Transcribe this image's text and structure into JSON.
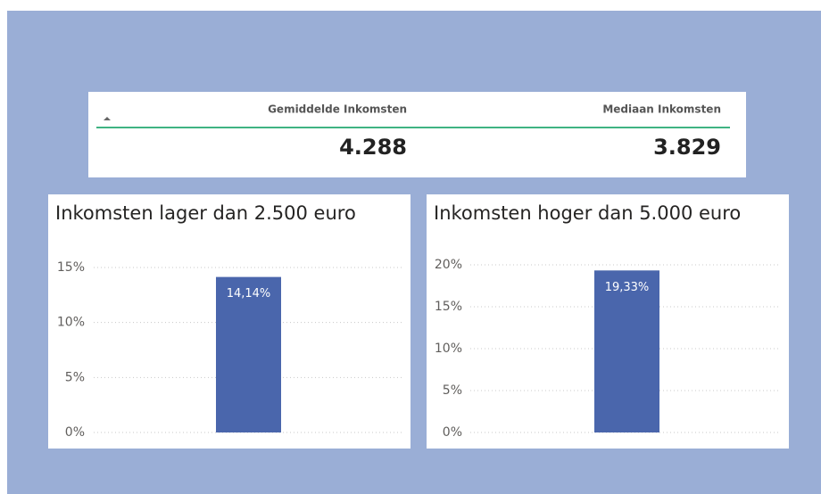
{
  "table": {
    "headers": [
      "Gemiddelde Inkomsten",
      "Mediaan Inkomsten"
    ],
    "rows": [
      [
        "4.288",
        "3.829"
      ]
    ]
  },
  "chart_data": [
    {
      "type": "bar",
      "title": "Inkomsten lager dan 2.500 euro",
      "values": [
        14.14
      ],
      "value_labels": [
        "14,14%"
      ],
      "color": "#4a66ac",
      "ylim": [
        0,
        15
      ],
      "yticks": [
        {
          "value": 0,
          "label": "0%"
        },
        {
          "value": 5,
          "label": "5%"
        },
        {
          "value": 10,
          "label": "10%"
        },
        {
          "value": 15,
          "label": "15%"
        }
      ],
      "grid": true
    },
    {
      "type": "bar",
      "title": "Inkomsten hoger dan 5.000 euro",
      "values": [
        19.33
      ],
      "value_labels": [
        "19,33%"
      ],
      "color": "#4a66ac",
      "ylim": [
        0,
        20
      ],
      "yticks": [
        {
          "value": 0,
          "label": "0%"
        },
        {
          "value": 5,
          "label": "5%"
        },
        {
          "value": 10,
          "label": "10%"
        },
        {
          "value": 15,
          "label": "15%"
        },
        {
          "value": 20,
          "label": "20%"
        }
      ],
      "grid": true
    }
  ]
}
